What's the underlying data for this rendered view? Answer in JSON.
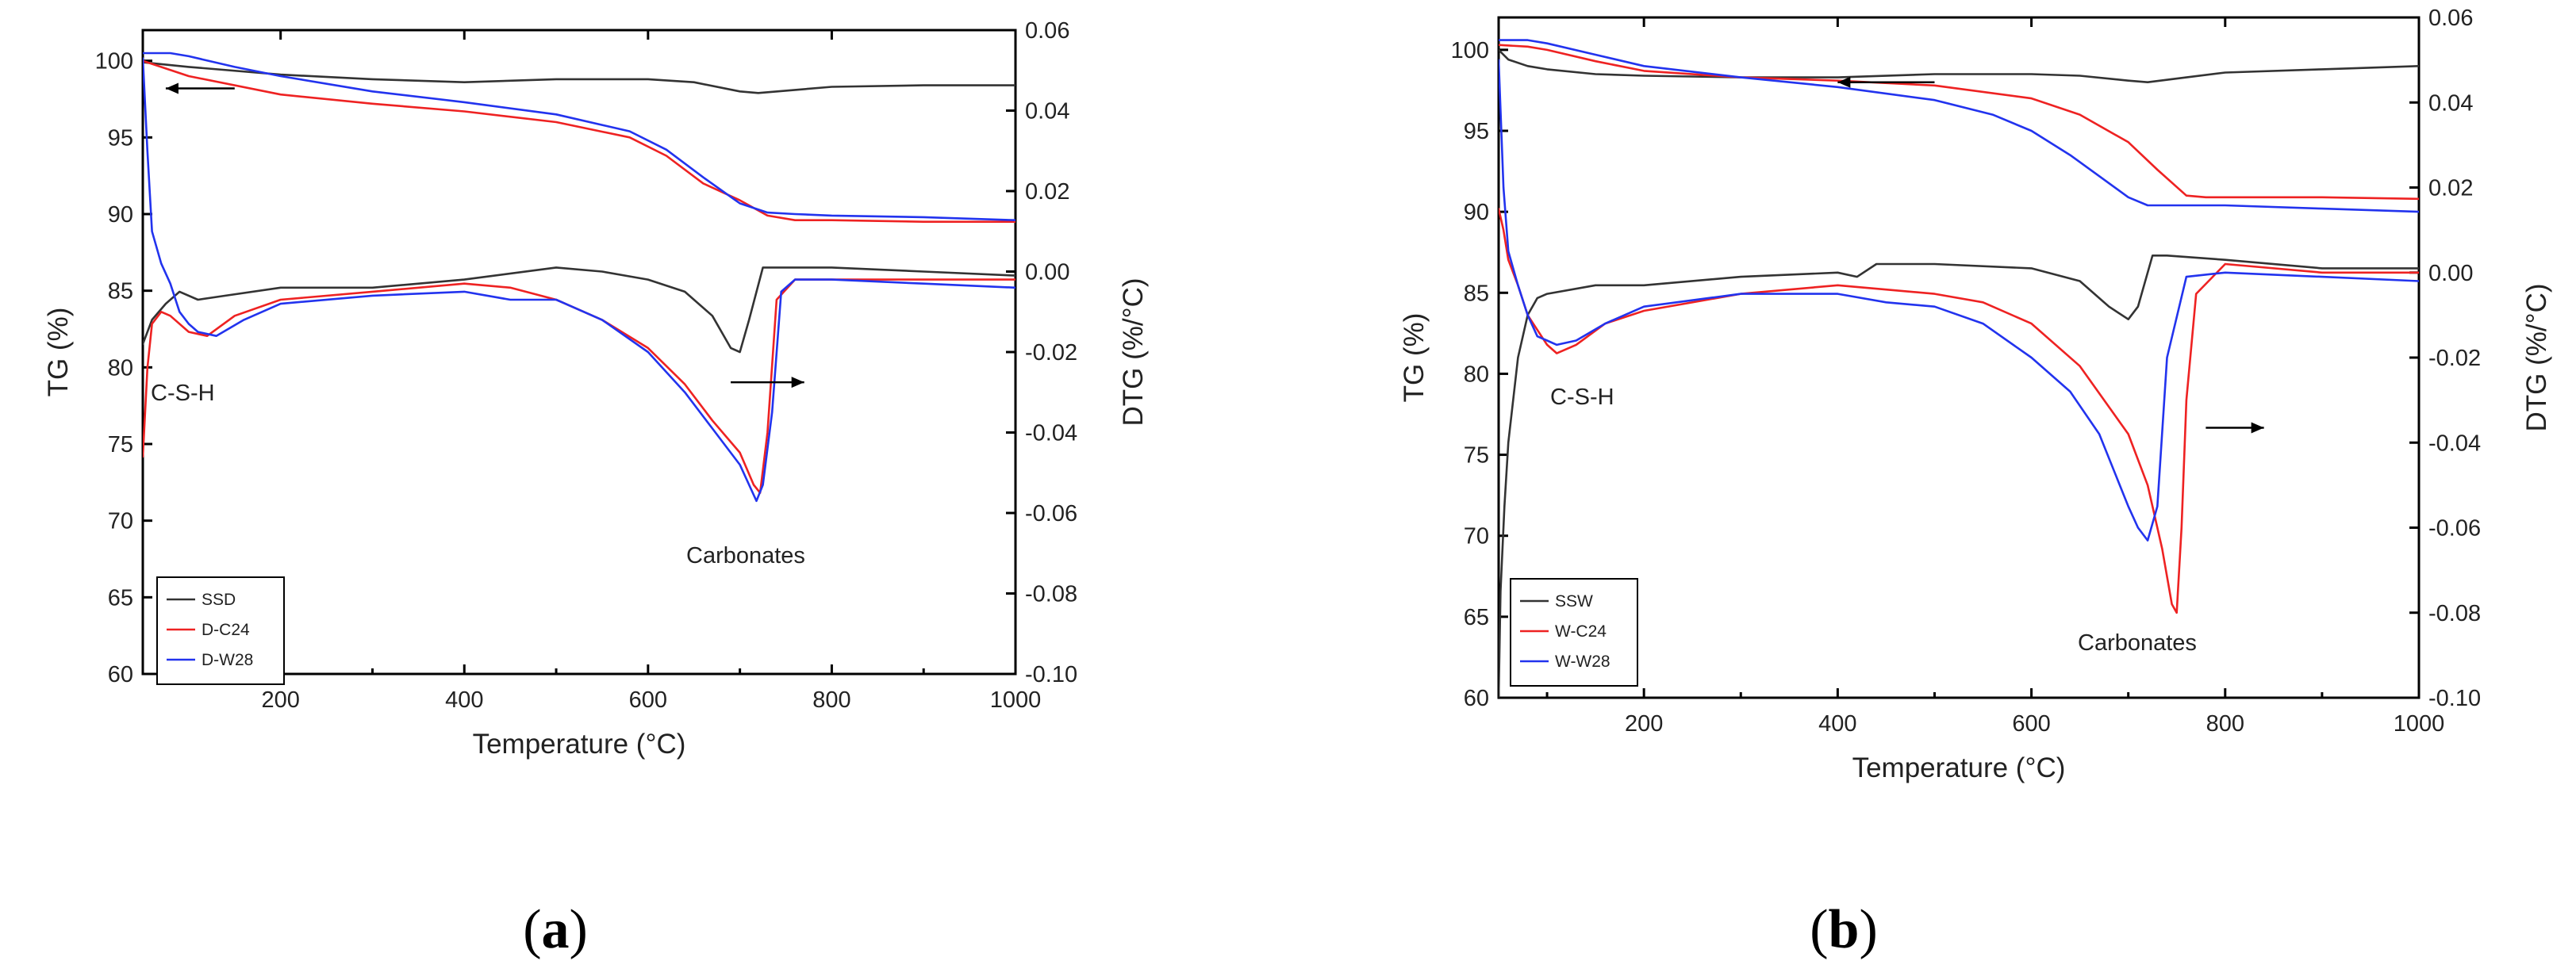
{
  "chart_data": [
    {
      "type": "line",
      "panel_label": "(a)",
      "panel_letter": "a",
      "xlabel": "Temperature (°C)",
      "ylabel_left": "TG (%)",
      "ylabel_right": "DTG (%/°C)",
      "xlim": [
        50,
        1000
      ],
      "ylim_left": [
        60,
        102
      ],
      "ylim_right": [
        -0.1,
        0.06
      ],
      "x_ticks": [
        200,
        400,
        600,
        800,
        1000
      ],
      "y_left_ticks": [
        60,
        65,
        70,
        75,
        80,
        85,
        90,
        95,
        100
      ],
      "y_right_ticks": [
        0.06,
        0.04,
        0.02,
        0.0,
        -0.02,
        -0.04,
        -0.06,
        -0.08,
        -0.1
      ],
      "y_right_tick_labels": [
        "0.06",
        "0.04",
        "0.02",
        "0.00",
        "-0.02",
        "-0.04",
        "-0.06",
        "-0.08",
        "-0.10"
      ],
      "annotations": {
        "csh": "C-S-H",
        "carbonates": "Carbonates"
      },
      "arrows": {
        "tg": {
          "from": [
            150,
            98.2
          ],
          "to": [
            75,
            98.2
          ]
        },
        "dtg": {
          "from": [
            690,
            -0.0275
          ],
          "to": [
            770,
            -0.0275
          ]
        }
      },
      "series": [
        {
          "name": "SSD",
          "color": "#333333",
          "axis": "left",
          "x": [
            50,
            100,
            200,
            300,
            400,
            500,
            600,
            650,
            700,
            720,
            760,
            800,
            900,
            1000
          ],
          "y": [
            99.9,
            99.6,
            99.1,
            98.8,
            98.6,
            98.8,
            98.8,
            98.6,
            98.0,
            97.9,
            98.1,
            98.3,
            98.4,
            98.4
          ]
        },
        {
          "name": "D-C24",
          "color": "#ee2222",
          "axis": "left",
          "x": [
            50,
            100,
            200,
            300,
            400,
            500,
            580,
            620,
            660,
            700,
            730,
            760,
            800,
            900,
            1000
          ],
          "y": [
            100.0,
            99.0,
            97.8,
            97.2,
            96.7,
            96.0,
            95.0,
            93.8,
            92.0,
            90.9,
            89.9,
            89.6,
            89.6,
            89.5,
            89.5
          ]
        },
        {
          "name": "D-W28",
          "color": "#2233ee",
          "axis": "left",
          "x": [
            50,
            80,
            100,
            150,
            200,
            300,
            400,
            500,
            580,
            620,
            660,
            700,
            730,
            760,
            800,
            900,
            1000
          ],
          "y": [
            100.5,
            100.5,
            100.3,
            99.6,
            99.0,
            98.0,
            97.3,
            96.5,
            95.4,
            94.2,
            92.4,
            90.7,
            90.1,
            90.0,
            89.9,
            89.8,
            89.6
          ]
        },
        {
          "name": "SSD",
          "color": "#333333",
          "axis": "right",
          "x": [
            50,
            60,
            75,
            90,
            110,
            140,
            200,
            300,
            400,
            500,
            550,
            600,
            640,
            670,
            690,
            700,
            710,
            725,
            740,
            800,
            900,
            1000
          ],
          "y": [
            -0.018,
            -0.012,
            -0.008,
            -0.005,
            -0.007,
            -0.006,
            -0.004,
            -0.004,
            -0.002,
            0.001,
            0.0,
            -0.002,
            -0.005,
            -0.011,
            -0.019,
            -0.02,
            -0.012,
            0.001,
            0.001,
            0.001,
            0.0,
            -0.001
          ]
        },
        {
          "name": "D-C24",
          "color": "#ee2222",
          "axis": "right",
          "x": [
            50,
            55,
            60,
            70,
            80,
            100,
            120,
            150,
            200,
            300,
            400,
            450,
            500,
            550,
            600,
            640,
            670,
            700,
            715,
            722,
            730,
            740,
            760,
            800,
            900,
            1000
          ],
          "y": [
            -0.046,
            -0.024,
            -0.013,
            -0.01,
            -0.011,
            -0.015,
            -0.016,
            -0.011,
            -0.007,
            -0.005,
            -0.003,
            -0.004,
            -0.007,
            -0.012,
            -0.019,
            -0.028,
            -0.037,
            -0.045,
            -0.053,
            -0.055,
            -0.04,
            -0.007,
            -0.002,
            -0.002,
            -0.002,
            -0.002
          ]
        },
        {
          "name": "D-W28",
          "color": "#2233ee",
          "axis": "right",
          "x": [
            50,
            55,
            60,
            70,
            80,
            90,
            100,
            110,
            130,
            160,
            200,
            300,
            400,
            450,
            500,
            550,
            600,
            640,
            670,
            700,
            712,
            718,
            725,
            735,
            745,
            760,
            800,
            900,
            1000
          ],
          "y": [
            0.053,
            0.03,
            0.01,
            0.002,
            -0.003,
            -0.01,
            -0.013,
            -0.015,
            -0.016,
            -0.012,
            -0.008,
            -0.006,
            -0.005,
            -0.007,
            -0.007,
            -0.012,
            -0.02,
            -0.03,
            -0.039,
            -0.048,
            -0.054,
            -0.057,
            -0.053,
            -0.035,
            -0.005,
            -0.002,
            -0.002,
            -0.003,
            -0.004
          ]
        }
      ]
    },
    {
      "type": "line",
      "panel_label": "(b)",
      "panel_letter": "b",
      "xlabel": "Temperature (°C)",
      "ylabel_left": "TG (%)",
      "ylabel_right": "DTG (%/°C)",
      "xlim": [
        50,
        1000
      ],
      "ylim_left": [
        60,
        102
      ],
      "ylim_right": [
        -0.1,
        0.06
      ],
      "x_ticks": [
        200,
        400,
        600,
        800,
        1000
      ],
      "y_left_ticks": [
        60,
        65,
        70,
        75,
        80,
        85,
        90,
        95,
        100
      ],
      "y_right_ticks": [
        0.06,
        0.04,
        0.02,
        0.0,
        -0.02,
        -0.04,
        -0.06,
        -0.08,
        -0.1
      ],
      "y_right_tick_labels": [
        "0.06",
        "0.04",
        "0.02",
        "0.00",
        "-0.02",
        "-0.04",
        "-0.06",
        "-0.08",
        "-0.10"
      ],
      "annotations": {
        "csh": "C-S-H",
        "carbonates": "Carbonates"
      },
      "arrows": {
        "tg": {
          "from": [
            500,
            98.0
          ],
          "to": [
            400,
            98.0
          ]
        },
        "dtg": {
          "from": [
            780,
            -0.0365
          ],
          "to": [
            840,
            -0.0365
          ]
        }
      },
      "series": [
        {
          "name": "SSW",
          "color": "#333333",
          "axis": "left",
          "x": [
            50,
            60,
            80,
            100,
            150,
            200,
            300,
            400,
            500,
            600,
            650,
            700,
            720,
            760,
            800,
            900,
            1000
          ],
          "y": [
            100.0,
            99.4,
            99.0,
            98.8,
            98.5,
            98.4,
            98.3,
            98.3,
            98.5,
            98.5,
            98.4,
            98.1,
            98.0,
            98.3,
            98.6,
            98.8,
            99.0
          ]
        },
        {
          "name": "W-C24",
          "color": "#ee2222",
          "axis": "left",
          "x": [
            50,
            80,
            100,
            150,
            200,
            300,
            400,
            500,
            600,
            650,
            700,
            730,
            760,
            780,
            800,
            900,
            1000
          ],
          "y": [
            100.3,
            100.2,
            100.0,
            99.3,
            98.7,
            98.3,
            98.1,
            97.8,
            97.0,
            96.0,
            94.3,
            92.6,
            91.0,
            90.9,
            90.9,
            90.9,
            90.8
          ]
        },
        {
          "name": "W-W28",
          "color": "#2233ee",
          "axis": "left",
          "x": [
            50,
            80,
            100,
            150,
            200,
            300,
            400,
            500,
            560,
            600,
            640,
            670,
            700,
            720,
            740,
            800,
            900,
            1000
          ],
          "y": [
            100.6,
            100.6,
            100.4,
            99.7,
            99.0,
            98.3,
            97.7,
            96.9,
            96.0,
            95.0,
            93.5,
            92.2,
            90.9,
            90.4,
            90.4,
            90.4,
            90.2,
            90.0
          ]
        },
        {
          "name": "SSW",
          "color": "#333333",
          "axis": "right",
          "x": [
            50,
            52,
            56,
            60,
            65,
            70,
            80,
            90,
            100,
            150,
            200,
            300,
            400,
            420,
            440,
            500,
            600,
            650,
            680,
            700,
            710,
            725,
            740,
            800,
            900,
            1000
          ],
          "y": [
            -0.1,
            -0.075,
            -0.055,
            -0.04,
            -0.03,
            -0.02,
            -0.01,
            -0.006,
            -0.005,
            -0.003,
            -0.003,
            -0.001,
            0.0,
            -0.001,
            0.002,
            0.002,
            0.001,
            -0.002,
            -0.008,
            -0.011,
            -0.008,
            0.004,
            0.004,
            0.003,
            0.001,
            0.001
          ]
        },
        {
          "name": "W-C24",
          "color": "#ee2222",
          "axis": "right",
          "x": [
            50,
            55,
            60,
            70,
            80,
            100,
            110,
            130,
            160,
            200,
            300,
            400,
            450,
            500,
            550,
            600,
            650,
            700,
            720,
            735,
            745,
            750,
            755,
            760,
            770,
            800,
            900,
            1000
          ],
          "y": [
            0.015,
            0.01,
            0.003,
            -0.003,
            -0.01,
            -0.017,
            -0.019,
            -0.017,
            -0.012,
            -0.009,
            -0.005,
            -0.003,
            -0.004,
            -0.005,
            -0.007,
            -0.012,
            -0.022,
            -0.038,
            -0.05,
            -0.065,
            -0.078,
            -0.08,
            -0.06,
            -0.03,
            -0.005,
            0.002,
            0.0,
            0.0
          ]
        },
        {
          "name": "W-W28",
          "color": "#2233ee",
          "axis": "right",
          "x": [
            50,
            55,
            60,
            70,
            80,
            90,
            100,
            110,
            130,
            160,
            200,
            300,
            400,
            450,
            500,
            550,
            600,
            640,
            670,
            700,
            710,
            720,
            730,
            740,
            760,
            800,
            900,
            1000
          ],
          "y": [
            0.05,
            0.02,
            0.005,
            -0.003,
            -0.01,
            -0.015,
            -0.016,
            -0.017,
            -0.016,
            -0.012,
            -0.008,
            -0.005,
            -0.005,
            -0.007,
            -0.008,
            -0.012,
            -0.02,
            -0.028,
            -0.038,
            -0.055,
            -0.06,
            -0.063,
            -0.055,
            -0.02,
            -0.001,
            0.0,
            -0.001,
            -0.002
          ]
        }
      ]
    }
  ]
}
